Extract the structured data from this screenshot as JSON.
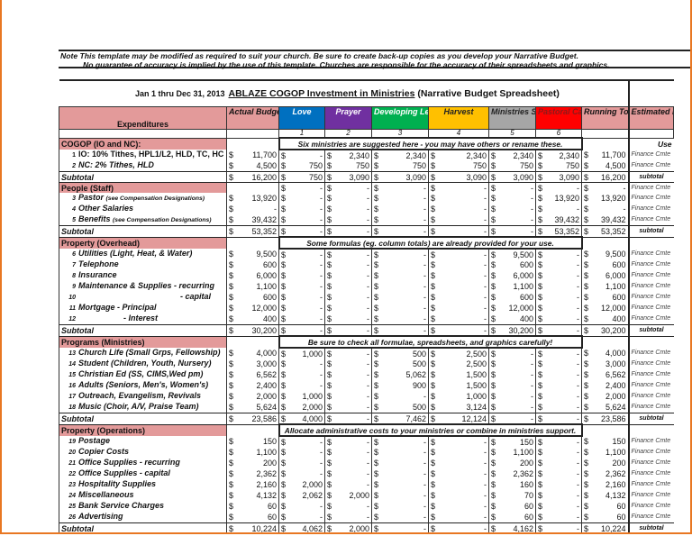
{
  "note": {
    "line1": "Note  This template may be modified as required to suit your church.  Be sure to create back-up copies as you develop your Narrative Budget.",
    "line2": "No guarantee of accuracy is implied by the use of this template.  Churches are responsible for the accuracy of their spreadsheets and graphics."
  },
  "title": {
    "date_range": "Jan 1 thru Dec 31, 2013",
    "main": "ABLAZE COGOP  Investment in Ministries",
    "sub": " (Narrative Budget Spreadsheet)"
  },
  "columns": [
    {
      "label": "Expenditures",
      "bg": "#e39a9a",
      "fg": "#111"
    },
    {
      "label": "Actual Budget",
      "bg": "#e39a9a",
      "fg": "#111"
    },
    {
      "label": "Love",
      "bg": "#0070c0",
      "fg": "#ffffff",
      "num": "1"
    },
    {
      "label": "Prayer",
      "bg": "#7030a0",
      "fg": "#ffffff",
      "num": "2"
    },
    {
      "label": "Developing Leaders",
      "bg": "#00b050",
      "fg": "#ffffff",
      "num": "3"
    },
    {
      "label": "Harvest",
      "bg": "#ffc000",
      "fg": "#222222",
      "num": "4"
    },
    {
      "label": "Ministries Support",
      "bg": "#a6a6a6",
      "fg": "#222222",
      "num": "5"
    },
    {
      "label": "Pastoral Care",
      "bg": "#ff0000",
      "fg": "#8b1a1a",
      "num": "6"
    },
    {
      "label": "Running Total",
      "bg": "#e39a9a",
      "fg": "#111"
    },
    {
      "label": "Estimated by:",
      "bg": "#e39a9a",
      "fg": "#111"
    }
  ],
  "sections": [
    {
      "header": "COGOP (IO and NC):",
      "note": "Six ministries are suggested here - you may have others or rename these.",
      "right_note": "Use",
      "rows": [
        {
          "num": "1",
          "label": "IO: 10% Tithes, HPL1/L2, HLD, TC, HC",
          "values": [
            "11,700",
            "-",
            "2,340",
            "2,340",
            "2,340",
            "2,340",
            "2,340",
            "11,700"
          ],
          "estimated": "Finance Cmte"
        },
        {
          "num": "2",
          "label": "NC: 2% Tithes, HLD",
          "values": [
            "4,500",
            "750",
            "750",
            "750",
            "750",
            "750",
            "750",
            "4,500"
          ],
          "estimated": "Finance Cmte"
        }
      ],
      "subtotal": {
        "label": "Subtotal",
        "values": [
          "16,200",
          "750",
          "3,090",
          "3,090",
          "3,090",
          "3,090",
          "3,090",
          "16,200"
        ],
        "estimated": "subtotal"
      }
    },
    {
      "header": "People (Staff)",
      "header_values": [
        "",
        "-",
        "-",
        "-",
        "-",
        "-",
        "-",
        "-"
      ],
      "header_estimated": "Finance Cmte",
      "rows": [
        {
          "num": "3",
          "label": "Pastor",
          "label_note": "(see Compensation Designations)",
          "values": [
            "13,920",
            "-",
            "-",
            "-",
            "-",
            "-",
            "13,920",
            "13,920"
          ],
          "estimated": "Finance Cmte"
        },
        {
          "num": "4",
          "label": "Other Salaries",
          "values": [
            "-",
            "-",
            "-",
            "-",
            "-",
            "-",
            "-",
            "-"
          ],
          "estimated": "Finance Cmte"
        },
        {
          "num": "5",
          "label": "Benefits",
          "label_note": "(see Compensation Designations)",
          "values": [
            "39,432",
            "-",
            "-",
            "-",
            "-",
            "-",
            "39,432",
            "39,432"
          ],
          "estimated": "Finance Cmte"
        }
      ],
      "subtotal": {
        "label": "Subtotal",
        "values": [
          "53,352",
          "-",
          "-",
          "-",
          "-",
          "-",
          "53,352",
          "53,352"
        ],
        "estimated": "subtotal"
      }
    },
    {
      "header": "Property (Overhead)",
      "note": "Some formulas (eg. column totals) are already provided for your use.",
      "rows": [
        {
          "num": "6",
          "label": "Utilities (Light, Heat, & Water)",
          "values": [
            "9,500",
            "-",
            "-",
            "-",
            "-",
            "9,500",
            "-",
            "9,500"
          ],
          "estimated": "Finance Cmte"
        },
        {
          "num": "7",
          "label": "Telephone",
          "values": [
            "600",
            "-",
            "-",
            "-",
            "-",
            "600",
            "-",
            "600"
          ],
          "estimated": "Finance Cmte"
        },
        {
          "num": "8",
          "label": "Insurance",
          "values": [
            "6,000",
            "-",
            "-",
            "-",
            "-",
            "6,000",
            "-",
            "6,000"
          ],
          "estimated": "Finance Cmte"
        },
        {
          "num": "9",
          "label": "Maintenance & Supplies - recurring",
          "values": [
            "1,100",
            "-",
            "-",
            "-",
            "-",
            "1,100",
            "-",
            "1,100"
          ],
          "estimated": "Finance Cmte"
        },
        {
          "num": "10",
          "label": "- capital",
          "values": [
            "600",
            "-",
            "-",
            "-",
            "-",
            "600",
            "-",
            "600"
          ],
          "estimated": "Finance Cmte"
        },
        {
          "num": "11",
          "label": "Mortgage  - Principal",
          "values": [
            "12,000",
            "-",
            "-",
            "-",
            "-",
            "12,000",
            "-",
            "12,000"
          ],
          "estimated": "Finance Cmte"
        },
        {
          "num": "12",
          "label": "- Interest",
          "values": [
            "400",
            "-",
            "-",
            "-",
            "-",
            "400",
            "-",
            "400"
          ],
          "estimated": "Finance Cmte"
        }
      ],
      "subtotal": {
        "label": "Subtotal",
        "values": [
          "30,200",
          "-",
          "-",
          "-",
          "-",
          "30,200",
          "-",
          "30,200"
        ],
        "estimated": "subtotal"
      }
    },
    {
      "header": "Programs (Ministries)",
      "note": "Be sure to check all formulae, spreadsheets, and graphics carefully!",
      "rows": [
        {
          "num": "13",
          "label": "Church Life (Small Grps, Fellowship)",
          "values": [
            "4,000",
            "1,000",
            "-",
            "500",
            "2,500",
            "-",
            "-",
            "4,000"
          ],
          "estimated": "Finance Cmte"
        },
        {
          "num": "14",
          "label": "Student (Children, Youth, Nursery)",
          "values": [
            "3,000",
            "-",
            "-",
            "500",
            "2,500",
            "-",
            "-",
            "3,000"
          ],
          "estimated": "Finance Cmte"
        },
        {
          "num": "15",
          "label": "Christian Ed (SS, CIMS,Wed pm)",
          "values": [
            "6,562",
            "-",
            "-",
            "5,062",
            "1,500",
            "-",
            "-",
            "6,562"
          ],
          "estimated": "Finance Cmte"
        },
        {
          "num": "16",
          "label": "Adults (Seniors, Men's, Women's)",
          "values": [
            "2,400",
            "-",
            "-",
            "900",
            "1,500",
            "-",
            "-",
            "2,400"
          ],
          "estimated": "Finance Cmte"
        },
        {
          "num": "17",
          "label": "Outreach, Evangelism, Revivals",
          "values": [
            "2,000",
            "1,000",
            "-",
            "-",
            "1,000",
            "-",
            "-",
            "2,000"
          ],
          "estimated": "Finance Cmte"
        },
        {
          "num": "18",
          "label": "Music (Choir, A/V, Praise Team)",
          "values": [
            "5,624",
            "2,000",
            "-",
            "500",
            "3,124",
            "-",
            "-",
            "5,624"
          ],
          "estimated": "Finance Cmte"
        }
      ],
      "subtotal": {
        "label": "Subtotal",
        "values": [
          "23,586",
          "4,000",
          "-",
          "7,462",
          "12,124",
          "-",
          "-",
          "23,586"
        ],
        "estimated": "subtotal"
      }
    },
    {
      "header": "Property (Operations)",
      "note": "Allocate administrative costs to your ministries or combine in ministries support.",
      "rows": [
        {
          "num": "19",
          "label": "Postage",
          "values": [
            "150",
            "-",
            "-",
            "-",
            "-",
            "150",
            "-",
            "150"
          ],
          "estimated": "Finance Cmte"
        },
        {
          "num": "20",
          "label": "Copier Costs",
          "values": [
            "1,100",
            "-",
            "-",
            "-",
            "-",
            "1,100",
            "-",
            "1,100"
          ],
          "estimated": "Finance Cmte"
        },
        {
          "num": "21",
          "label": "Office Supplies - recurring",
          "values": [
            "200",
            "-",
            "-",
            "-",
            "-",
            "200",
            "-",
            "200"
          ],
          "estimated": "Finance Cmte"
        },
        {
          "num": "22",
          "label": "Office Supplies - capital",
          "values": [
            "2,362",
            "-",
            "-",
            "-",
            "-",
            "2,362",
            "-",
            "2,362"
          ],
          "estimated": "Finance Cmte"
        },
        {
          "num": "23",
          "label": "Hospitality Supplies",
          "values": [
            "2,160",
            "2,000",
            "-",
            "-",
            "-",
            "160",
            "-",
            "2,160"
          ],
          "estimated": "Finance Cmte"
        },
        {
          "num": "24",
          "label": "Miscellaneous",
          "values": [
            "4,132",
            "2,062",
            "2,000",
            "-",
            "-",
            "70",
            "-",
            "4,132"
          ],
          "estimated": "Finance Cmte"
        },
        {
          "num": "25",
          "label": "Bank Service Charges",
          "values": [
            "60",
            "-",
            "-",
            "-",
            "-",
            "60",
            "-",
            "60"
          ],
          "estimated": "Finance Cmte"
        },
        {
          "num": "26",
          "label": "Advertising",
          "values": [
            "60",
            "-",
            "-",
            "-",
            "-",
            "60",
            "-",
            "60"
          ],
          "estimated": "Finance Cmte"
        }
      ],
      "subtotal": {
        "label": "Subtotal",
        "values": [
          "10,224",
          "4,062",
          "2,000",
          "-",
          "-",
          "4,162",
          "-",
          "10,224"
        ],
        "estimated": "subtotal"
      }
    }
  ]
}
